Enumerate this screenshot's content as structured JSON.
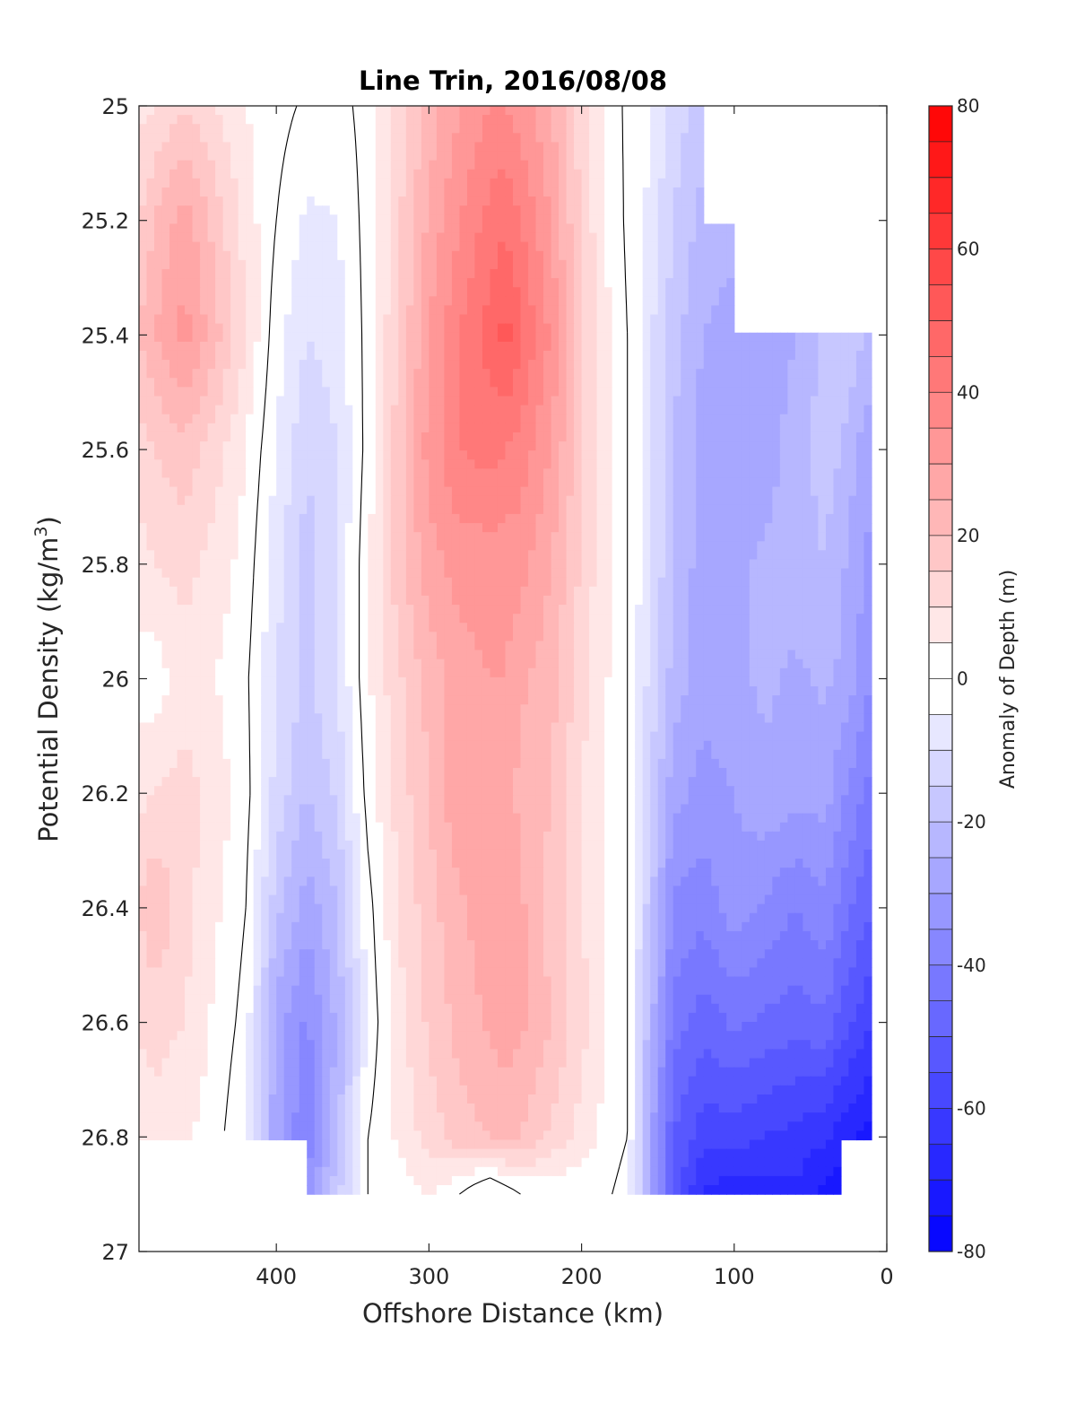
{
  "chart_data": {
    "type": "heatmap",
    "subtype": "filled-contour",
    "title": "Line Trin, 2016/08/08",
    "xlabel": "Offshore Distance (km)",
    "ylabel_main": "Potential Density (kg/m",
    "ylabel_sup": "3",
    "ylabel_close": ")",
    "colorbar_label": "Anomaly of Depth (m)",
    "xlim": [
      490,
      0
    ],
    "x_reversed": true,
    "ylim": [
      25,
      27
    ],
    "y_reversed": true,
    "xticks": [
      400,
      300,
      200,
      100,
      0
    ],
    "xtick_labels": [
      "400",
      "300",
      "200",
      "100",
      "0"
    ],
    "yticks": [
      25,
      25.2,
      25.4,
      25.6,
      25.8,
      26,
      26.2,
      26.4,
      26.6,
      26.8,
      27
    ],
    "ytick_labels": [
      "25",
      "25.2",
      "25.4",
      "25.6",
      "25.8",
      "26",
      "26.2",
      "26.4",
      "26.6",
      "26.8",
      "27"
    ],
    "colorbar": {
      "min": -80,
      "max": 80,
      "step": 5,
      "ticks": [
        80,
        60,
        40,
        20,
        0,
        -20,
        -40,
        -60,
        -80
      ],
      "tick_labels": [
        "80",
        "60",
        "40",
        "20",
        "0",
        "-20",
        "-40",
        "-60",
        "-80"
      ],
      "colormap": "blue-white-red",
      "low_color": "#0000ff",
      "mid_color": "#ffffff",
      "high_color": "#ff0000"
    },
    "zero_contour_color": "#000000",
    "grid": false,
    "x": [
      490,
      480,
      460,
      440,
      420,
      400,
      380,
      360,
      340,
      320,
      300,
      280,
      260,
      250,
      240,
      220,
      200,
      180,
      170,
      160,
      140,
      120,
      100,
      80,
      60,
      40,
      30,
      20,
      10
    ],
    "y": [
      25,
      25.2,
      25.4,
      25.6,
      25.8,
      26,
      26.2,
      26.4,
      26.6,
      26.8,
      26.9
    ],
    "z": [
      [
        8,
        10,
        15,
        10,
        5,
        2,
        -1,
        -2,
        2,
        12,
        22,
        30,
        35,
        35,
        33,
        25,
        12,
        2,
        -1,
        -3,
        -12,
        -18,
        null,
        null,
        null,
        null,
        null,
        null,
        null
      ],
      [
        15,
        20,
        28,
        18,
        8,
        0,
        -6,
        -5,
        2,
        14,
        26,
        35,
        42,
        44,
        40,
        30,
        14,
        3,
        -1,
        -4,
        -15,
        -22,
        -22,
        null,
        null,
        null,
        null,
        null,
        null
      ],
      [
        20,
        25,
        32,
        22,
        10,
        -3,
        -10,
        -8,
        2,
        15,
        30,
        40,
        47,
        52,
        46,
        34,
        16,
        4,
        0,
        -6,
        -18,
        -25,
        -28,
        -30,
        -25,
        -18,
        -15,
        -18,
        -22
      ],
      [
        12,
        15,
        18,
        12,
        5,
        -5,
        -14,
        -10,
        2,
        18,
        32,
        40,
        42,
        40,
        38,
        30,
        16,
        4,
        0,
        -6,
        -20,
        -28,
        -30,
        -28,
        -22,
        -18,
        -20,
        -25,
        -28
      ],
      [
        8,
        10,
        12,
        8,
        3,
        -8,
        -18,
        -10,
        4,
        18,
        28,
        32,
        32,
        32,
        32,
        25,
        14,
        4,
        0,
        -6,
        -20,
        -28,
        -26,
        -24,
        -22,
        -20,
        -24,
        -28,
        -32
      ],
      [
        3,
        2,
        8,
        5,
        1,
        -10,
        -16,
        -10,
        4,
        14,
        22,
        28,
        30,
        30,
        26,
        22,
        12,
        4,
        0,
        -8,
        -22,
        -28,
        -26,
        -24,
        -26,
        -24,
        -26,
        -30,
        -35
      ],
      [
        8,
        10,
        12,
        8,
        2,
        -12,
        -20,
        -14,
        2,
        12,
        20,
        30,
        28,
        26,
        24,
        20,
        10,
        3,
        0,
        -10,
        -28,
        -32,
        -30,
        -26,
        -28,
        -28,
        -34,
        -38,
        -42
      ],
      [
        15,
        20,
        12,
        6,
        0,
        -18,
        -28,
        -20,
        -2,
        10,
        18,
        24,
        28,
        30,
        26,
        18,
        10,
        4,
        0,
        -12,
        -36,
        -38,
        -32,
        -36,
        -40,
        -36,
        -42,
        -46,
        -50
      ],
      [
        10,
        12,
        10,
        4,
        -2,
        -28,
        -36,
        -24,
        -4,
        8,
        16,
        22,
        26,
        28,
        26,
        20,
        12,
        4,
        0,
        -16,
        -42,
        -48,
        -44,
        -46,
        -48,
        -46,
        -52,
        -56,
        -60
      ],
      [
        8,
        8,
        6,
        2,
        -5,
        -28,
        -40,
        -22,
        0,
        6,
        12,
        18,
        20,
        22,
        20,
        14,
        8,
        2,
        0,
        -20,
        -50,
        -58,
        -58,
        -60,
        -62,
        -64,
        -68,
        -70,
        -72
      ],
      [
        null,
        null,
        null,
        null,
        null,
        null,
        -32,
        -16,
        0,
        2,
        6,
        0,
        -8,
        -4,
        0,
        2,
        1,
        0,
        -2,
        -18,
        -52,
        -66,
        -68,
        -68,
        -66,
        -72,
        -74,
        null,
        null
      ]
    ]
  }
}
